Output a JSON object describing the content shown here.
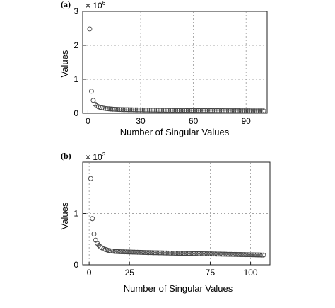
{
  "chart_data": [
    {
      "type": "scatter",
      "panel_label": "(a)",
      "multiplier": "× 10",
      "multiplier_exp": "6",
      "xlabel": "Number of Singular Values",
      "ylabel": "Values",
      "xlim": [
        -3,
        102
      ],
      "ylim": [
        0,
        3
      ],
      "xticks": [
        0,
        30,
        60,
        90
      ],
      "yticks": [
        0,
        1,
        2,
        3
      ],
      "grid": true,
      "marker": "open-circle",
      "series": [
        {
          "x": [
            1,
            2,
            3,
            4,
            5,
            6,
            7,
            8,
            9,
            10,
            11,
            12,
            13,
            14,
            15,
            16,
            17,
            18,
            19,
            20,
            21,
            22,
            23,
            24,
            25,
            26,
            27,
            28,
            29,
            30,
            31,
            32,
            33,
            34,
            35,
            36,
            37,
            38,
            39,
            40,
            41,
            42,
            43,
            44,
            45,
            46,
            47,
            48,
            49,
            50,
            51,
            52,
            53,
            54,
            55,
            56,
            57,
            58,
            59,
            60,
            61,
            62,
            63,
            64,
            65,
            66,
            67,
            68,
            69,
            70,
            71,
            72,
            73,
            74,
            75,
            76,
            77,
            78,
            79,
            80,
            81,
            82,
            83,
            84,
            85,
            86,
            87,
            88,
            89,
            90,
            91,
            92,
            93,
            94,
            95,
            96,
            97,
            98,
            99,
            100
          ],
          "y": [
            2.48,
            0.65,
            0.38,
            0.27,
            0.22,
            0.19,
            0.17,
            0.16,
            0.15,
            0.14,
            0.135,
            0.13,
            0.125,
            0.12,
            0.118,
            0.115,
            0.113,
            0.111,
            0.109,
            0.107,
            0.106,
            0.105,
            0.104,
            0.103,
            0.102,
            0.101,
            0.1,
            0.099,
            0.098,
            0.097,
            0.097,
            0.096,
            0.095,
            0.095,
            0.094,
            0.093,
            0.093,
            0.092,
            0.092,
            0.091,
            0.09,
            0.09,
            0.089,
            0.089,
            0.088,
            0.088,
            0.087,
            0.087,
            0.086,
            0.086,
            0.085,
            0.085,
            0.084,
            0.084,
            0.084,
            0.083,
            0.083,
            0.082,
            0.082,
            0.082,
            0.081,
            0.081,
            0.08,
            0.08,
            0.08,
            0.079,
            0.079,
            0.079,
            0.078,
            0.078,
            0.078,
            0.077,
            0.077,
            0.077,
            0.076,
            0.076,
            0.076,
            0.075,
            0.075,
            0.075,
            0.074,
            0.074,
            0.074,
            0.073,
            0.073,
            0.073,
            0.072,
            0.072,
            0.072,
            0.071,
            0.071,
            0.071,
            0.07,
            0.07,
            0.07,
            0.069,
            0.069,
            0.069,
            0.068,
            0.068
          ]
        }
      ]
    },
    {
      "type": "scatter",
      "panel_label": "(b)",
      "multiplier": "× 10",
      "multiplier_exp": "3",
      "xlabel": "Number of Singular Values",
      "ylabel": "Values",
      "xlim": [
        -4,
        112
      ],
      "ylim": [
        0,
        2
      ],
      "xticks": [
        0,
        25,
        75,
        100
      ],
      "xticks_grid": [
        0,
        25,
        50,
        75,
        100
      ],
      "yticks": [
        0,
        1
      ],
      "grid": true,
      "marker": "open-circle",
      "series": [
        {
          "x": [
            1,
            2,
            3,
            4,
            5,
            6,
            7,
            8,
            9,
            10,
            11,
            12,
            13,
            14,
            15,
            16,
            17,
            18,
            19,
            20,
            21,
            22,
            23,
            24,
            25,
            26,
            27,
            28,
            29,
            30,
            31,
            32,
            33,
            34,
            35,
            36,
            37,
            38,
            39,
            40,
            41,
            42,
            43,
            44,
            45,
            46,
            47,
            48,
            49,
            50,
            51,
            52,
            53,
            54,
            55,
            56,
            57,
            58,
            59,
            60,
            61,
            62,
            63,
            64,
            65,
            66,
            67,
            68,
            69,
            70,
            71,
            72,
            73,
            74,
            75,
            76,
            77,
            78,
            79,
            80,
            81,
            82,
            83,
            84,
            85,
            86,
            87,
            88,
            89,
            90,
            91,
            92,
            93,
            94,
            95,
            96,
            97,
            98,
            99,
            100,
            101,
            102,
            103,
            104,
            105,
            106,
            107,
            108
          ],
          "y": [
            1.68,
            0.9,
            0.6,
            0.48,
            0.42,
            0.38,
            0.35,
            0.33,
            0.31,
            0.3,
            0.29,
            0.28,
            0.275,
            0.27,
            0.265,
            0.262,
            0.26,
            0.258,
            0.256,
            0.255,
            0.254,
            0.253,
            0.252,
            0.251,
            0.25,
            0.249,
            0.248,
            0.247,
            0.246,
            0.245,
            0.244,
            0.243,
            0.242,
            0.241,
            0.24,
            0.239,
            0.238,
            0.238,
            0.237,
            0.236,
            0.235,
            0.235,
            0.234,
            0.233,
            0.233,
            0.232,
            0.231,
            0.231,
            0.23,
            0.229,
            0.229,
            0.228,
            0.227,
            0.227,
            0.226,
            0.225,
            0.225,
            0.224,
            0.223,
            0.223,
            0.222,
            0.221,
            0.221,
            0.22,
            0.219,
            0.219,
            0.218,
            0.217,
            0.217,
            0.216,
            0.215,
            0.215,
            0.214,
            0.213,
            0.213,
            0.212,
            0.211,
            0.211,
            0.21,
            0.209,
            0.209,
            0.208,
            0.207,
            0.207,
            0.206,
            0.205,
            0.205,
            0.204,
            0.203,
            0.203,
            0.202,
            0.201,
            0.201,
            0.2,
            0.199,
            0.199,
            0.198,
            0.197,
            0.197,
            0.196,
            0.195,
            0.195,
            0.194,
            0.193,
            0.193,
            0.192,
            0.191,
            0.19
          ]
        }
      ]
    }
  ]
}
